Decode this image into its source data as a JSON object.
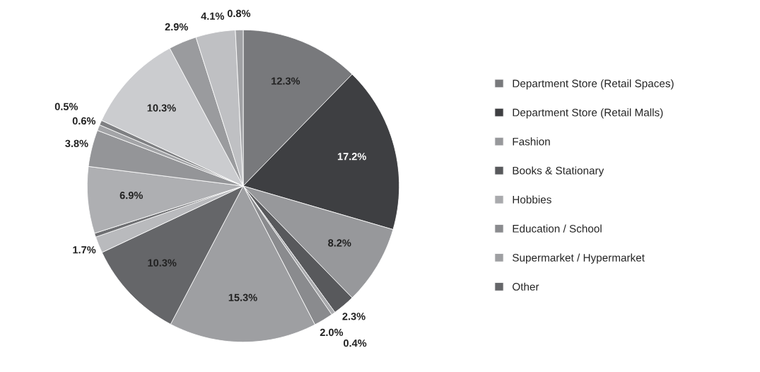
{
  "chart_data": {
    "type": "pie",
    "categories": [
      "Department Store (Retail Spaces)",
      "Department Store (Retail Malls)",
      "Fashion",
      "Books & Stationary",
      "Hobbies",
      "Education / School",
      "Supermarket / Hypermarket",
      "Other",
      null,
      null,
      null,
      null,
      null,
      null,
      null,
      null,
      null,
      null
    ],
    "values": [
      12.3,
      17.2,
      8.2,
      2.3,
      0.4,
      2.0,
      15.3,
      10.3,
      1.7,
      0.4,
      6.9,
      3.8,
      0.6,
      0.5,
      10.3,
      2.9,
      4.1,
      0.8
    ],
    "value_labels": [
      "12.3%",
      "17.2%",
      "8.2%",
      "2.3%",
      "0.4%",
      "2.0%",
      "15.3%",
      "10.3%",
      "1.7%",
      null,
      "6.9%",
      "3.8%",
      "0.6%",
      "0.5%",
      "10.3%",
      "2.9%",
      "4.1%",
      "0.8%"
    ],
    "colors": [
      "#78797c",
      "#3e3f42",
      "#97989b",
      "#58595c",
      "#a9aaad",
      "#8a8b8e",
      "#9e9fa2",
      "#656669",
      "#b9babd",
      "#6e6f72",
      "#aeafb2",
      "#949598",
      "#a3a4a7",
      "#7f8083",
      "#cbcccf",
      "#9a9b9e",
      "#bfc0c3",
      "#a0a1a4"
    ],
    "legend": "right"
  }
}
